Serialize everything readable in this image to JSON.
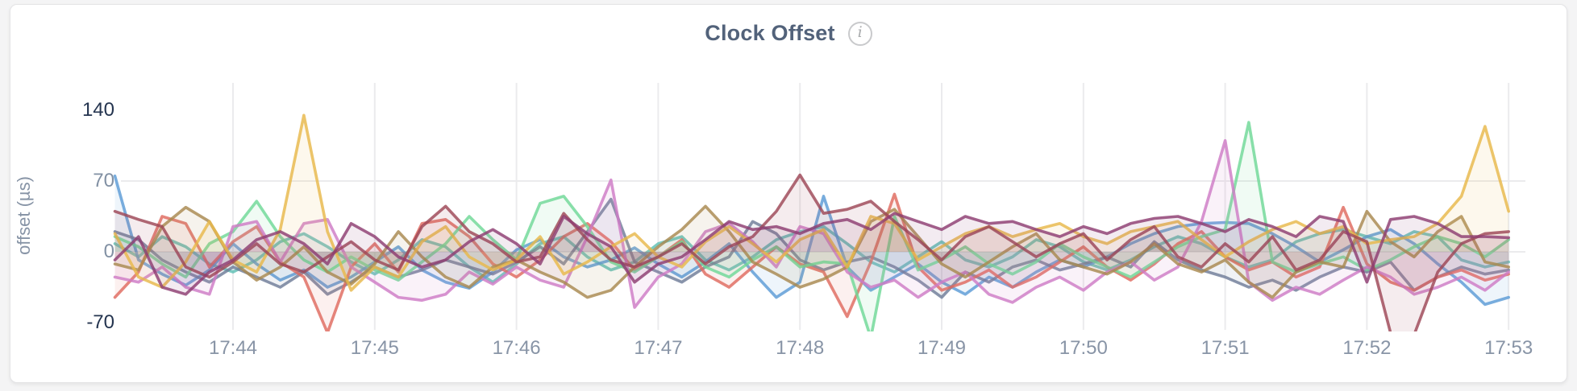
{
  "card": {
    "title": "Clock Offset",
    "info_glyph": "i"
  },
  "colors": {
    "card_background": "#ffffff",
    "page_background": "#f4f4f5",
    "card_border": "#e4e4e6",
    "title_text": "#52627a",
    "tick_major": "#24344f",
    "tick_minor": "#8190a3",
    "gridline": "#ebebed",
    "info_icon": "#c9cacc"
  },
  "chart_data": {
    "type": "line",
    "title": "Clock Offset",
    "xlabel": "",
    "ylabel": "offset (µs)",
    "ylim": [
      -77,
      167
    ],
    "yticks": [
      140,
      70,
      0,
      -70
    ],
    "ytick_styles": [
      "major",
      "minor",
      "minor",
      "major"
    ],
    "y_gridline_values": [
      70,
      0
    ],
    "x_ticks": [
      "17:44",
      "17:45",
      "17:46",
      "17:47",
      "17:48",
      "17:49",
      "17:50",
      "17:51",
      "17:52",
      "17:53"
    ],
    "x_start_time": "17:43:10",
    "x_step_seconds": 10,
    "grid": true,
    "legend_position": "none",
    "series": [
      {
        "name": "teal",
        "color": "#5fbfb4",
        "values": [
          8,
          -5,
          15,
          5,
          -12,
          -20,
          -8,
          10,
          18,
          5,
          -10,
          -22,
          -8,
          12,
          5,
          -15,
          -30,
          -12,
          8,
          15,
          -5,
          -18,
          -10,
          8,
          15,
          -8,
          -18,
          -5,
          12,
          20,
          25,
          8,
          -10,
          -20,
          -5,
          10,
          -8,
          -15,
          -5,
          12,
          5,
          -10,
          -18,
          -8,
          5,
          15,
          8,
          -5,
          -15,
          -8,
          10,
          18,
          22,
          15,
          8,
          20,
          15,
          -8,
          -15,
          -10
        ]
      },
      {
        "name": "blue",
        "color": "#5c9bd6",
        "values": [
          75,
          -8,
          -22,
          -33,
          -18,
          8,
          -12,
          -28,
          -18,
          -35,
          -25,
          -10,
          5,
          -18,
          -30,
          -36,
          -20,
          2,
          12,
          -5,
          -15,
          -8,
          4,
          -12,
          -25,
          -10,
          8,
          -20,
          -45,
          -30,
          55,
          -15,
          -38,
          -25,
          -12,
          -30,
          -42,
          -25,
          -35,
          -20,
          -8,
          -15,
          -5,
          8,
          18,
          25,
          28,
          29,
          28,
          18,
          5,
          -10,
          2,
          15,
          22,
          8,
          -12,
          -30,
          -52,
          -45
        ]
      },
      {
        "name": "slate",
        "color": "#6f7d99",
        "values": [
          20,
          12,
          -8,
          -20,
          -30,
          -15,
          -25,
          -35,
          -20,
          -42,
          -30,
          -15,
          -25,
          -18,
          -8,
          -15,
          -22,
          -10,
          5,
          -12,
          20,
          52,
          -10,
          -20,
          -30,
          -15,
          -5,
          30,
          18,
          -8,
          -18,
          -10,
          -5,
          -15,
          -28,
          -45,
          -20,
          -30,
          -15,
          -8,
          -18,
          -12,
          -5,
          -15,
          10,
          -8,
          -18,
          -25,
          -35,
          -28,
          -38,
          -25,
          -15,
          -20,
          -10,
          -38,
          -25,
          -15,
          -22,
          -18
        ]
      },
      {
        "name": "red",
        "color": "#df6a5f",
        "values": [
          -45,
          -20,
          35,
          28,
          -15,
          10,
          25,
          -10,
          -25,
          -80,
          -15,
          8,
          -20,
          28,
          32,
          15,
          -12,
          -25,
          -8,
          15,
          28,
          10,
          -18,
          -5,
          12,
          -22,
          -35,
          -15,
          5,
          -12,
          -20,
          -64,
          -10,
          57,
          -15,
          -38,
          -30,
          -18,
          -35,
          -25,
          -10,
          5,
          -15,
          -28,
          -12,
          8,
          20,
          -5,
          -18,
          -10,
          -25,
          -15,
          44,
          -12,
          -30,
          -38,
          -25,
          -18,
          -28,
          -22
        ]
      },
      {
        "name": "emerald",
        "color": "#6fd897",
        "values": [
          15,
          5,
          -12,
          -25,
          8,
          20,
          50,
          15,
          -8,
          -20,
          -5,
          -18,
          -28,
          -10,
          8,
          35,
          12,
          -8,
          48,
          55,
          25,
          -10,
          -20,
          -5,
          10,
          -15,
          -25,
          -8,
          5,
          -15,
          -10,
          -12,
          -85,
          35,
          -18,
          -8,
          5,
          -12,
          -22,
          -10,
          8,
          -5,
          -15,
          -25,
          -10,
          5,
          15,
          22,
          128,
          -10,
          -20,
          -12,
          -5,
          -18,
          -8,
          5,
          15,
          8,
          -5,
          12
        ]
      },
      {
        "name": "orchid",
        "color": "#ce7bc6",
        "values": [
          -25,
          -30,
          -15,
          -35,
          -42,
          25,
          30,
          -10,
          28,
          32,
          -15,
          -30,
          -45,
          -48,
          -42,
          -20,
          -32,
          -15,
          -28,
          -35,
          15,
          71,
          -55,
          -25,
          -12,
          20,
          28,
          10,
          -15,
          25,
          18,
          -20,
          -35,
          -28,
          -45,
          -30,
          -20,
          -42,
          -50,
          -35,
          -25,
          -38,
          -20,
          -10,
          -28,
          -15,
          30,
          110,
          -30,
          -48,
          -35,
          -42,
          -28,
          -15,
          -25,
          -42,
          -35,
          -25,
          -38,
          -20
        ]
      },
      {
        "name": "olive",
        "color": "#a8894f",
        "values": [
          -12,
          -18,
          25,
          44,
          30,
          -10,
          -28,
          -15,
          5,
          -20,
          -32,
          -12,
          20,
          -5,
          -25,
          -35,
          -15,
          -8,
          -20,
          -30,
          -45,
          -38,
          -15,
          5,
          22,
          45,
          20,
          -10,
          -22,
          -35,
          -27,
          -15,
          30,
          42,
          15,
          -12,
          -25,
          -10,
          5,
          18,
          -8,
          -15,
          -22,
          -10,
          8,
          -12,
          -20,
          -8,
          -30,
          -45,
          -20,
          -10,
          -15,
          40,
          10,
          -5,
          20,
          35,
          -10,
          -15
        ]
      },
      {
        "name": "amber",
        "color": "#e8b84b",
        "values": [
          18,
          -25,
          -35,
          -10,
          30,
          -8,
          -20,
          22,
          135,
          20,
          -38,
          -15,
          -25,
          10,
          25,
          -5,
          -18,
          -8,
          15,
          -22,
          -10,
          5,
          18,
          -5,
          -15,
          10,
          25,
          8,
          -10,
          12,
          22,
          -15,
          35,
          28,
          -8,
          5,
          18,
          25,
          15,
          22,
          28,
          15,
          8,
          20,
          25,
          30,
          12,
          -5,
          10,
          22,
          30,
          18,
          25,
          8,
          12,
          15,
          28,
          55,
          124,
          40
        ]
      },
      {
        "name": "maroon",
        "color": "#9e4757",
        "values": [
          40,
          32,
          25,
          -15,
          -25,
          -10,
          8,
          -12,
          -20,
          -5,
          10,
          -8,
          -18,
          25,
          45,
          20,
          8,
          -10,
          -5,
          38,
          12,
          -8,
          -15,
          -5,
          8,
          -12,
          5,
          15,
          40,
          76,
          38,
          42,
          50,
          30,
          12,
          -8,
          15,
          25,
          10,
          -5,
          8,
          18,
          -8,
          12,
          25,
          -5,
          -15,
          8,
          -10,
          15,
          -18,
          -8,
          20,
          10,
          -80,
          -82,
          -20,
          8,
          18,
          20
        ]
      },
      {
        "name": "plum",
        "color": "#8d3d72",
        "values": [
          -8,
          15,
          -35,
          -42,
          -20,
          -8,
          12,
          20,
          8,
          -12,
          28,
          15,
          -5,
          -15,
          -8,
          10,
          22,
          8,
          -12,
          35,
          18,
          5,
          -30,
          -12,
          -5,
          12,
          30,
          22,
          25,
          18,
          28,
          32,
          22,
          38,
          30,
          22,
          35,
          28,
          30,
          22,
          15,
          25,
          18,
          28,
          33,
          35,
          28,
          20,
          32,
          25,
          15,
          35,
          30,
          -30,
          32,
          35,
          28,
          15,
          15,
          14
        ]
      }
    ]
  }
}
